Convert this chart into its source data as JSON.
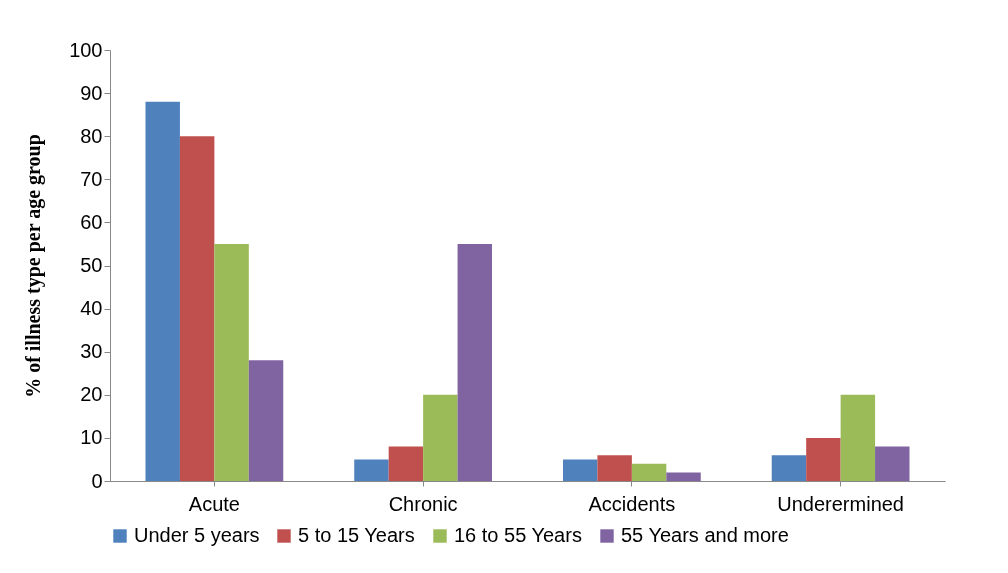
{
  "chart_data": {
    "type": "bar",
    "ylabel": "% of illness type per age  group",
    "categories": [
      "Acute",
      "Chronic",
      "Accidents",
      "Underermined"
    ],
    "series": [
      {
        "name": "Under 5 years",
        "color": "#4f81bd",
        "values": [
          88,
          5,
          5,
          6
        ]
      },
      {
        "name": "5 to 15 Years",
        "color": "#c0504d",
        "values": [
          80,
          8,
          6,
          10
        ]
      },
      {
        "name": "16 to 55 Years",
        "color": "#9bbb59",
        "values": [
          55,
          20,
          4,
          20
        ]
      },
      {
        "name": "55 Years and more",
        "color": "#8064a2",
        "values": [
          28,
          55,
          2,
          8
        ]
      }
    ],
    "ylim": [
      0,
      100
    ],
    "yticks": [
      0,
      10,
      20,
      30,
      40,
      50,
      60,
      70,
      80,
      90,
      100
    ],
    "grid": false,
    "legend": "bottom"
  }
}
